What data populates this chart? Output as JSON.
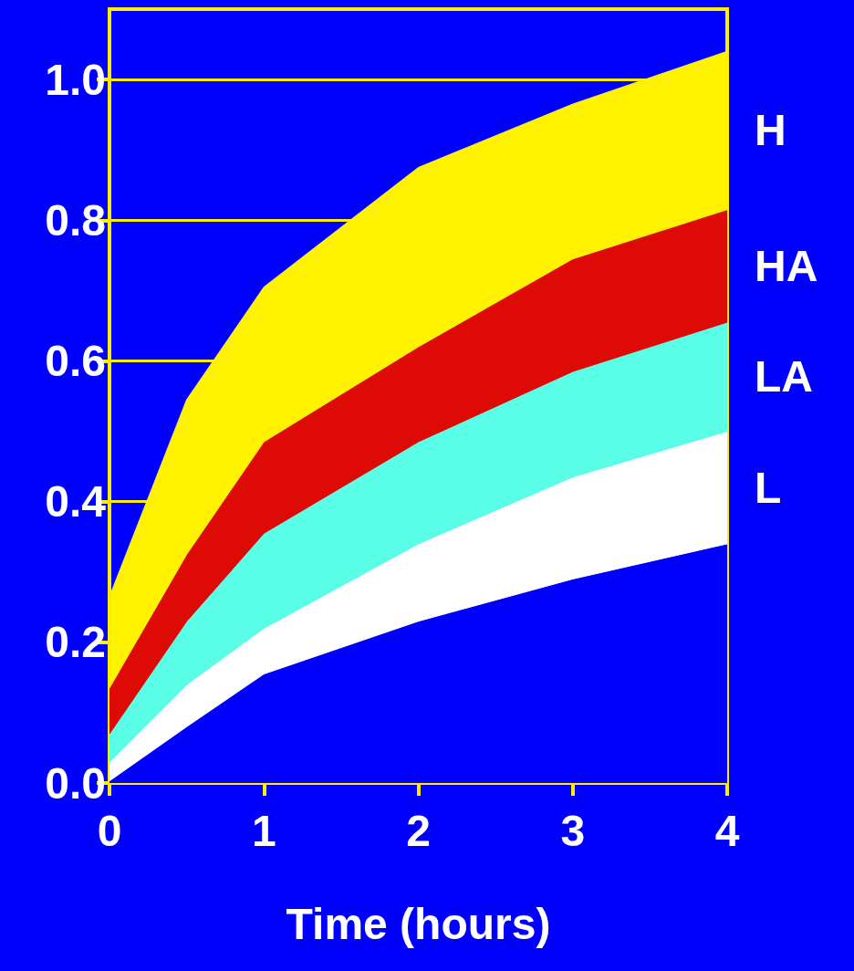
{
  "chart_data": {
    "type": "area",
    "stacked": true,
    "xlabel": "Time (hours)",
    "x": [
      0,
      0.5,
      1,
      2,
      3,
      4
    ],
    "series": [
      {
        "color": "#0000ff",
        "values": [
          0.003,
          0.08,
          0.155,
          0.23,
          0.29,
          0.34
        ]
      },
      {
        "name": "L",
        "color": "#ffffff",
        "values": [
          0.027,
          0.06,
          0.065,
          0.11,
          0.145,
          0.16
        ]
      },
      {
        "name": "LA",
        "color": "#5afde6",
        "values": [
          0.04,
          0.09,
          0.135,
          0.145,
          0.15,
          0.155
        ]
      },
      {
        "name": "HA",
        "color": "#dd0a05",
        "values": [
          0.065,
          0.095,
          0.13,
          0.135,
          0.16,
          0.16
        ]
      },
      {
        "name": "H",
        "color": "#fff200",
        "values": [
          0.13,
          0.22,
          0.22,
          0.255,
          0.22,
          0.225
        ]
      }
    ],
    "xlim": [
      0,
      4
    ],
    "xticks": [
      0,
      1,
      2,
      3,
      4
    ],
    "ylim": [
      0,
      1.1
    ],
    "yticks": [
      {
        "value": 0,
        "label": "0.0"
      },
      {
        "value": 0.2,
        "label": "0.2"
      },
      {
        "value": 0.4,
        "label": "0.4"
      },
      {
        "value": 0.6,
        "label": "0.6"
      },
      {
        "value": 0.8,
        "label": "0.8"
      },
      {
        "value": 1,
        "label": "1.0"
      }
    ],
    "grid": "y",
    "legend": false
  }
}
